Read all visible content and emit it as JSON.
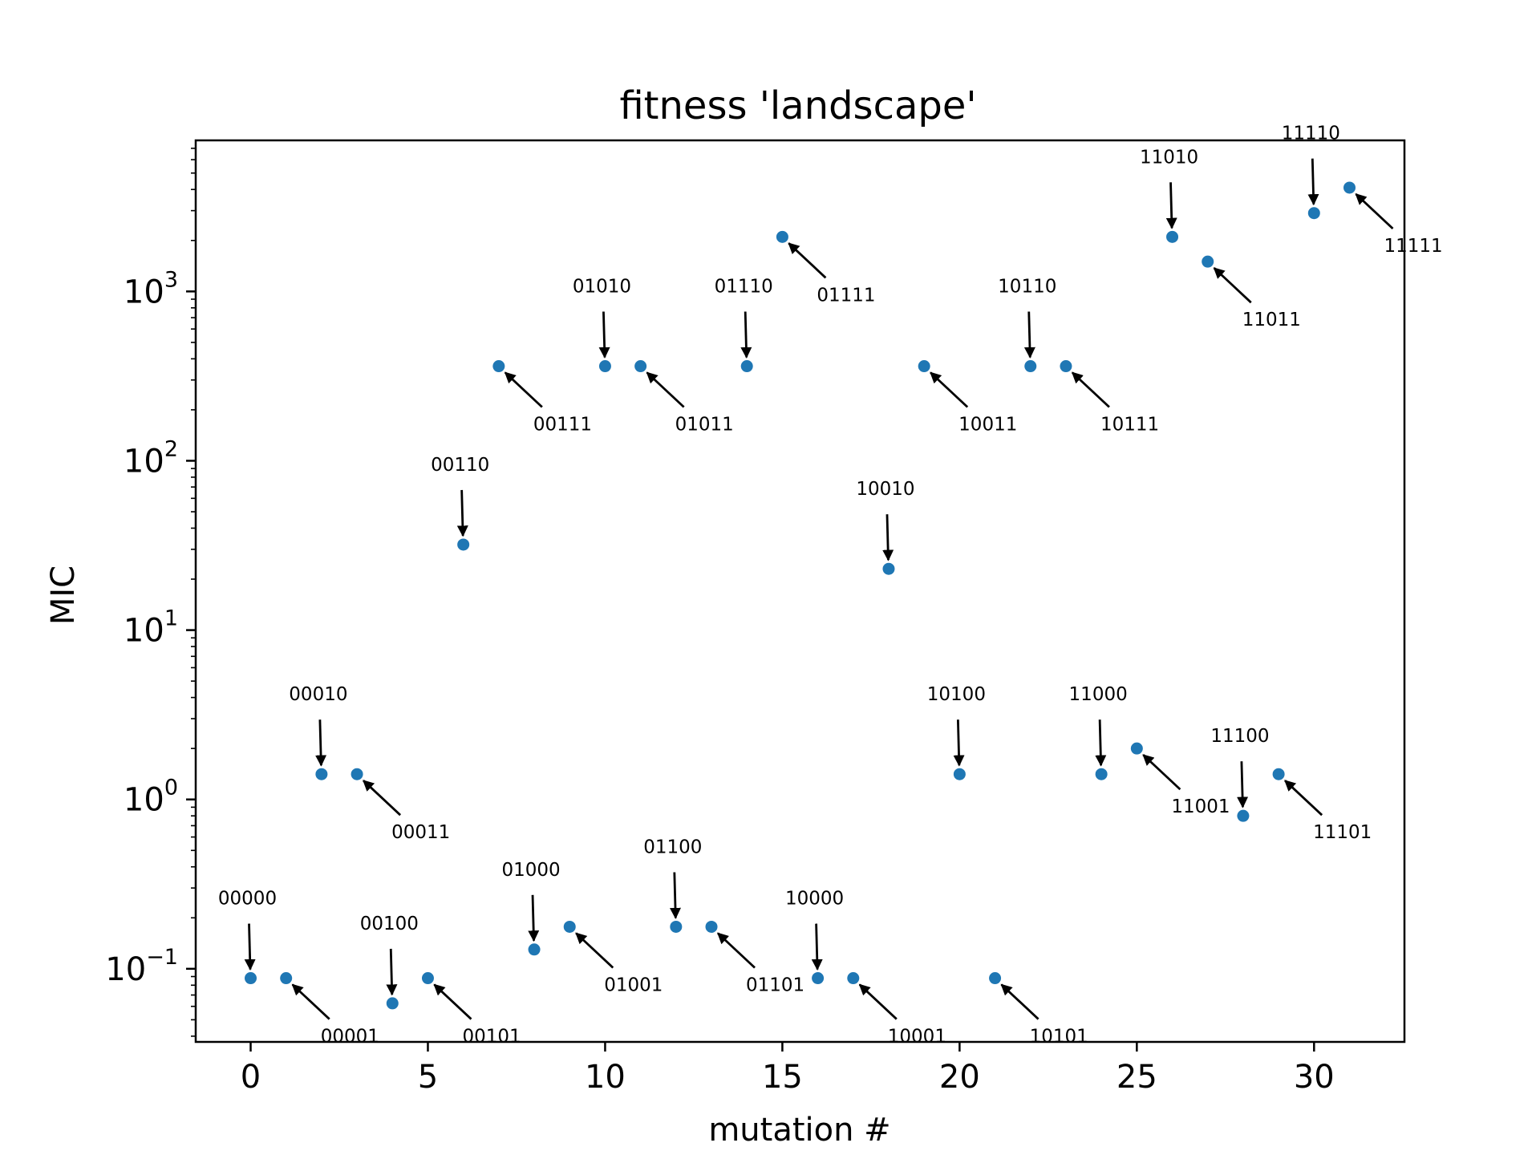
{
  "chart_data": {
    "type": "scatter",
    "title": "fitness 'landscape'",
    "xlabel": "mutation #",
    "ylabel": "MIC",
    "xlim": [
      -1.55,
      32.55
    ],
    "ylim": [
      0.037,
      7800
    ],
    "yscale": "log",
    "grid": false,
    "legend": "none",
    "point_color": "#1f77b4",
    "x_ticks": [
      0,
      5,
      10,
      15,
      20,
      25,
      30
    ],
    "y_ticks": [
      {
        "value": 0.1,
        "base": "10",
        "exp": "−1"
      },
      {
        "value": 1,
        "base": "10",
        "exp": "0"
      },
      {
        "value": 10,
        "base": "10",
        "exp": "1"
      },
      {
        "value": 100,
        "base": "10",
        "exp": "2"
      },
      {
        "value": 1000,
        "base": "10",
        "exp": "3"
      }
    ],
    "points": [
      {
        "x": 0,
        "y": 0.088,
        "label": "00000",
        "annot": "above"
      },
      {
        "x": 1,
        "y": 0.088,
        "label": "00001",
        "annot": "below"
      },
      {
        "x": 2,
        "y": 1.41,
        "label": "00010",
        "annot": "above"
      },
      {
        "x": 3,
        "y": 1.41,
        "label": "00011",
        "annot": "below"
      },
      {
        "x": 4,
        "y": 0.0625,
        "label": "00100",
        "annot": "above"
      },
      {
        "x": 5,
        "y": 0.088,
        "label": "00101",
        "annot": "below"
      },
      {
        "x": 6,
        "y": 32,
        "label": "00110",
        "annot": "above"
      },
      {
        "x": 7,
        "y": 362,
        "label": "00111",
        "annot": "below"
      },
      {
        "x": 8,
        "y": 0.13,
        "label": "01000",
        "annot": "above"
      },
      {
        "x": 9,
        "y": 0.177,
        "label": "01001",
        "annot": "below"
      },
      {
        "x": 10,
        "y": 362,
        "label": "01010",
        "annot": "above"
      },
      {
        "x": 11,
        "y": 362,
        "label": "01011",
        "annot": "below"
      },
      {
        "x": 12,
        "y": 0.177,
        "label": "01100",
        "annot": "above"
      },
      {
        "x": 13,
        "y": 0.177,
        "label": "01101",
        "annot": "below"
      },
      {
        "x": 14,
        "y": 362,
        "label": "01110",
        "annot": "above"
      },
      {
        "x": 15,
        "y": 2100,
        "label": "01111",
        "annot": "below"
      },
      {
        "x": 16,
        "y": 0.088,
        "label": "10000",
        "annot": "above"
      },
      {
        "x": 17,
        "y": 0.088,
        "label": "10001",
        "annot": "below"
      },
      {
        "x": 18,
        "y": 23,
        "label": "10010",
        "annot": "above"
      },
      {
        "x": 19,
        "y": 362,
        "label": "10011",
        "annot": "below"
      },
      {
        "x": 20,
        "y": 1.41,
        "label": "10100",
        "annot": "above"
      },
      {
        "x": 21,
        "y": 0.088,
        "label": "10101",
        "annot": "below"
      },
      {
        "x": 22,
        "y": 362,
        "label": "10110",
        "annot": "above"
      },
      {
        "x": 23,
        "y": 362,
        "label": "10111",
        "annot": "below"
      },
      {
        "x": 24,
        "y": 1.41,
        "label": "11000",
        "annot": "above"
      },
      {
        "x": 25,
        "y": 2.0,
        "label": "11001",
        "annot": "below"
      },
      {
        "x": 26,
        "y": 2100,
        "label": "11010",
        "annot": "above"
      },
      {
        "x": 27,
        "y": 1500,
        "label": "11011",
        "annot": "below"
      },
      {
        "x": 28,
        "y": 0.8,
        "label": "11100",
        "annot": "above"
      },
      {
        "x": 29,
        "y": 1.41,
        "label": "11101",
        "annot": "below"
      },
      {
        "x": 30,
        "y": 2900,
        "label": "11110",
        "annot": "above"
      },
      {
        "x": 31,
        "y": 4100,
        "label": "11111",
        "annot": "below"
      }
    ]
  }
}
